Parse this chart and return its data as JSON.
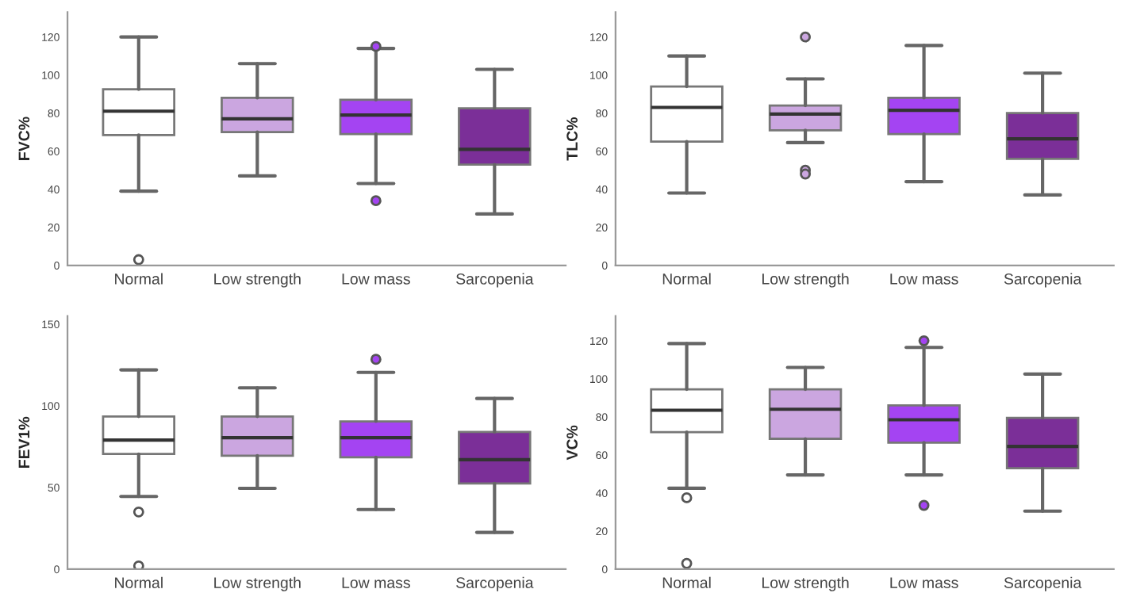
{
  "chart_data": [
    {
      "type": "box",
      "ylabel": "FVC%",
      "categories": [
        "Normal",
        "Low strength",
        "Low mass",
        "Sarcopenia"
      ],
      "colors": [
        "#ffffff",
        "#cba6e0",
        "#a444f2",
        "#7b2f98"
      ],
      "ylim": [
        0,
        133
      ],
      "yticks": [
        0,
        20,
        40,
        60,
        80,
        100,
        120
      ],
      "grid": false,
      "legend": false,
      "boxes": [
        {
          "low": 39,
          "q1": 68.5,
          "median": 81,
          "q3": 92.5,
          "high": 120,
          "outliers": [
            3
          ]
        },
        {
          "low": 47,
          "q1": 70,
          "median": 77,
          "q3": 88,
          "high": 106
        },
        {
          "low": 43,
          "q1": 69,
          "median": 79,
          "q3": 87,
          "high": 114,
          "outliers": [
            115,
            34
          ]
        },
        {
          "low": 27,
          "q1": 53,
          "median": 61,
          "q3": 82.5,
          "high": 103
        }
      ]
    },
    {
      "type": "box",
      "ylabel": "TLC%",
      "categories": [
        "Normal",
        "Low strength",
        "Low mass",
        "Sarcopenia"
      ],
      "colors": [
        "#ffffff",
        "#cba6e0",
        "#a444f2",
        "#7b2f98"
      ],
      "ylim": [
        0,
        133
      ],
      "yticks": [
        0,
        20,
        40,
        60,
        80,
        100,
        120
      ],
      "grid": false,
      "legend": false,
      "boxes": [
        {
          "low": 38,
          "q1": 65,
          "median": 83,
          "q3": 94,
          "high": 110
        },
        {
          "low": 64.5,
          "q1": 71,
          "median": 79.5,
          "q3": 84,
          "high": 98,
          "outliers": [
            120,
            50,
            48
          ]
        },
        {
          "low": 44,
          "q1": 69,
          "median": 81.5,
          "q3": 88,
          "high": 115.5
        },
        {
          "low": 37,
          "q1": 56,
          "median": 66.5,
          "q3": 80,
          "high": 101
        }
      ]
    },
    {
      "type": "box",
      "ylabel": "FEV1%",
      "categories": [
        "Normal",
        "Low strength",
        "Low mass",
        "Sarcopenia"
      ],
      "colors": [
        "#ffffff",
        "#cba6e0",
        "#a444f2",
        "#7b2f98"
      ],
      "ylim": [
        0,
        155
      ],
      "yticks": [
        0,
        50,
        100,
        150
      ],
      "grid": false,
      "legend": false,
      "boxes": [
        {
          "low": 44.5,
          "q1": 70.5,
          "median": 79,
          "q3": 93.5,
          "high": 122,
          "outliers": [
            35,
            2
          ]
        },
        {
          "low": 49.5,
          "q1": 69.5,
          "median": 80.5,
          "q3": 93.5,
          "high": 111
        },
        {
          "low": 36.5,
          "q1": 68.5,
          "median": 80.5,
          "q3": 90.5,
          "high": 120.5,
          "outliers": [
            128.5
          ]
        },
        {
          "low": 22.5,
          "q1": 52.5,
          "median": 67,
          "q3": 84,
          "high": 104.5
        }
      ]
    },
    {
      "type": "box",
      "ylabel": "VC%",
      "categories": [
        "Normal",
        "Low strength",
        "Low mass",
        "Sarcopenia"
      ],
      "colors": [
        "#ffffff",
        "#cba6e0",
        "#a444f2",
        "#7b2f98"
      ],
      "ylim": [
        0,
        133
      ],
      "yticks": [
        0,
        20,
        40,
        60,
        80,
        100,
        120
      ],
      "grid": false,
      "legend": false,
      "boxes": [
        {
          "low": 42.5,
          "q1": 72,
          "median": 83.5,
          "q3": 94.5,
          "high": 118.5,
          "outliers": [
            37.5,
            3
          ]
        },
        {
          "low": 49.5,
          "q1": 68.5,
          "median": 84,
          "q3": 94.5,
          "high": 106
        },
        {
          "low": 49.5,
          "q1": 66.5,
          "median": 78.5,
          "q3": 86,
          "high": 116.5,
          "outliers": [
            120,
            33.5
          ]
        },
        {
          "low": 30.5,
          "q1": 53,
          "median": 64.5,
          "q3": 79.5,
          "high": 102.5
        }
      ]
    }
  ]
}
